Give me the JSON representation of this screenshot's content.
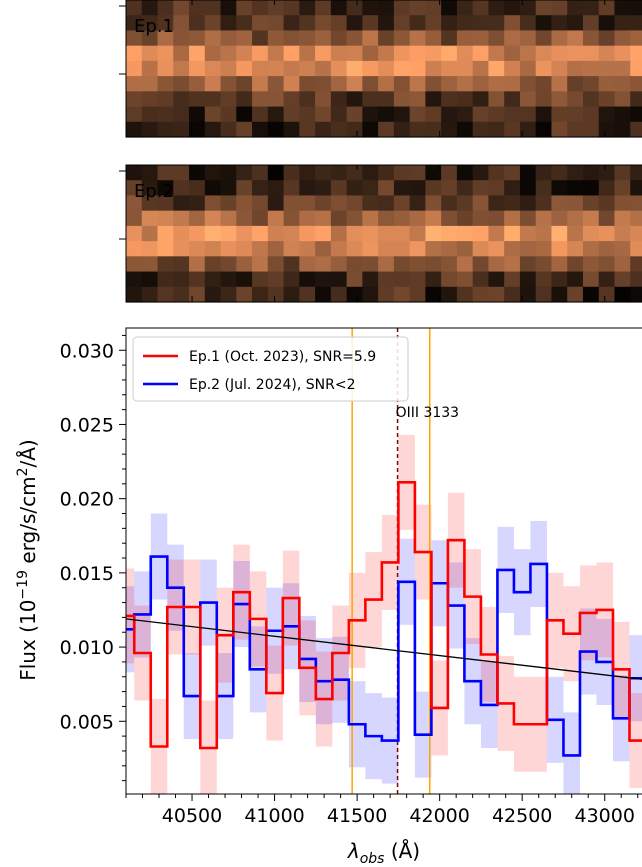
{
  "chart_data": [
    {
      "type": "heatmap",
      "label": "Ep.1",
      "label_color": "#ff0000",
      "colormap": "copper",
      "rows": 9,
      "cols": 33
    },
    {
      "type": "heatmap",
      "label": "Ep.2",
      "label_color": "#ff0000",
      "colormap": "copper",
      "rows": 9,
      "cols": 33
    },
    {
      "type": "line",
      "style": "steps-mid with shaded uncertainty bands",
      "xlabel": "λobs (Å)",
      "xlabel_math": "\\lambda_{obs}",
      "ylabel": "Flux (10⁻¹⁹ erg/s/cm²/Å)",
      "ylabel_parts": {
        "pre": "Flux (10",
        "exp1": "−19",
        "mid": " erg/s/cm",
        "exp2": "2",
        "post": "/Å)"
      },
      "xlim": [
        40100,
        43250
      ],
      "ylim": [
        0.0001,
        0.0315
      ],
      "xticks": [
        40500,
        41000,
        41500,
        42000,
        42500,
        43000
      ],
      "yticks": [
        0.005,
        0.01,
        0.015,
        0.02,
        0.025,
        0.03
      ],
      "ytick_labels": [
        "0.005",
        "0.010",
        "0.015",
        "0.020",
        "0.025",
        "0.030"
      ],
      "legend_position": "top-left",
      "x": [
        40100,
        40200,
        40300,
        40400,
        40500,
        40600,
        40700,
        40800,
        40900,
        41000,
        41100,
        41200,
        41300,
        41400,
        41500,
        41600,
        41700,
        41800,
        41900,
        42000,
        42100,
        42200,
        42300,
        42400,
        42500,
        42600,
        42700,
        42800,
        42900,
        43000,
        43100,
        43200
      ],
      "series": [
        {
          "name": "Ep.1 (Oct. 2023), SNR=5.9",
          "color": "#ff0000",
          "values": [
            0.0121,
            0.0096,
            0.0033,
            0.0127,
            0.0127,
            0.0032,
            0.0108,
            0.0137,
            0.0119,
            0.0069,
            0.0133,
            0.0086,
            0.0065,
            0.0096,
            0.0118,
            0.0132,
            0.0157,
            0.0211,
            0.0164,
            0.0059,
            0.0172,
            0.0134,
            0.0095,
            0.0062,
            0.0048,
            0.0048,
            0.0118,
            0.0109,
            0.0123,
            0.0125,
            0.0085,
            0.0037
          ],
          "err": [
            0.0032,
            0.0032,
            0.0032,
            0.0032,
            0.0032,
            0.0032,
            0.0032,
            0.0032,
            0.0032,
            0.0032,
            0.0032,
            0.0032,
            0.0032,
            0.0032,
            0.0032,
            0.0032,
            0.0032,
            0.0032,
            0.0032,
            0.0032,
            0.0032,
            0.0032,
            0.0032,
            0.0032,
            0.0032,
            0.0032,
            0.0032,
            0.0032,
            0.0032,
            0.0032,
            0.0032,
            0.0032
          ]
        },
        {
          "name": "Ep.2 (Jul. 2024), SNR<2",
          "color": "#0000ff",
          "values": [
            0.0112,
            0.0122,
            0.0161,
            0.014,
            0.0067,
            0.013,
            0.0067,
            0.0129,
            0.0085,
            0.0111,
            0.0114,
            0.0092,
            0.0077,
            0.0078,
            0.0048,
            0.004,
            0.0037,
            0.0144,
            0.0041,
            0.0143,
            0.0128,
            0.0077,
            0.0061,
            0.0152,
            0.0137,
            0.0156,
            0.0051,
            0.0027,
            0.0097,
            0.009,
            0.0052,
            0.0079
          ],
          "err": [
            0.0029,
            0.0029,
            0.0029,
            0.0029,
            0.0029,
            0.0029,
            0.0029,
            0.0029,
            0.0029,
            0.0029,
            0.0029,
            0.0029,
            0.0029,
            0.0029,
            0.0029,
            0.0029,
            0.0029,
            0.0029,
            0.0029,
            0.0029,
            0.0029,
            0.0029,
            0.0029,
            0.0029,
            0.0029,
            0.0029,
            0.0029,
            0.0029,
            0.0029,
            0.0029,
            0.0029,
            0.0029
          ]
        }
      ],
      "continuum": {
        "color": "#000000",
        "x": [
          40100,
          43250
        ],
        "y": [
          0.0119,
          0.0078
        ]
      },
      "vlines": [
        {
          "x": 41470,
          "color": "#ffa500",
          "style": "solid"
        },
        {
          "x": 41745,
          "color": "#8b0000",
          "style": "dashed",
          "label": "OIII 3133"
        },
        {
          "x": 41940,
          "color": "#ffa500",
          "style": "solid"
        }
      ]
    }
  ]
}
